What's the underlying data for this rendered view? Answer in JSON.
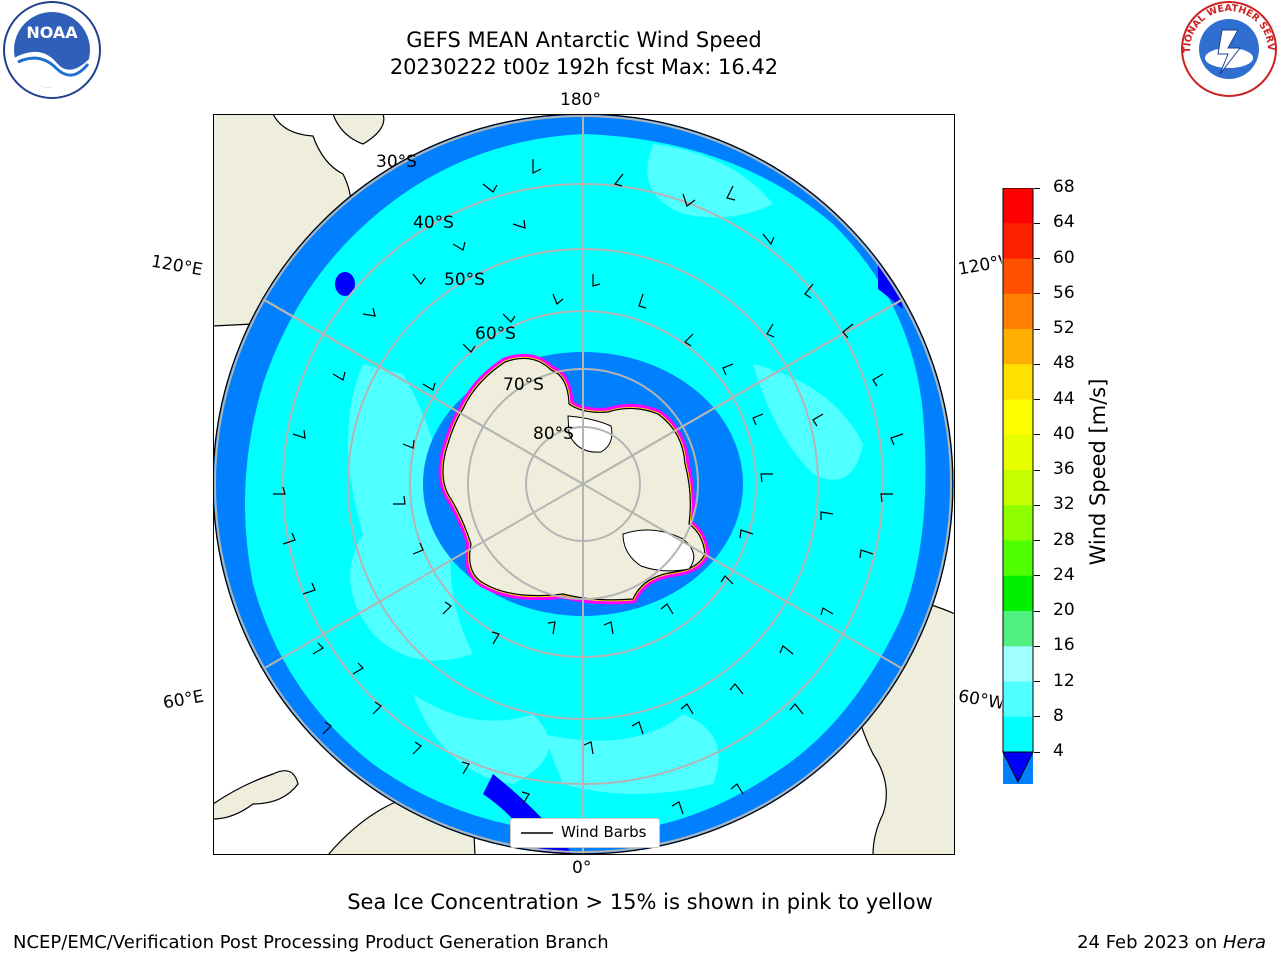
{
  "title_line1": "GEFS MEAN Antarctic Wind Speed",
  "title_line2": "20230222 t00z 192h fcst   Max: 16.42",
  "logos": {
    "noaa_text": "NOAA",
    "nws_text": "NATIONAL WEATHER SERVICE"
  },
  "longitude_labels": {
    "top": "180°",
    "bottom": "0°",
    "upper_left": "120°E",
    "upper_right": "120°W",
    "lower_left": "60°E",
    "lower_right": "60°W"
  },
  "latitude_labels": [
    "30°S",
    "40°S",
    "50°S",
    "60°S",
    "70°S",
    "80°S"
  ],
  "legend": {
    "label": "Wind Barbs"
  },
  "colorbar": {
    "label": "Wind Speed [m/s]",
    "ticks": [
      "68",
      "64",
      "60",
      "56",
      "52",
      "48",
      "44",
      "40",
      "36",
      "32",
      "28",
      "24",
      "20",
      "16",
      "12",
      "8",
      "4"
    ],
    "colors": [
      "#ff0000",
      "#ff2000",
      "#ff5000",
      "#ff8000",
      "#ffb000",
      "#ffe000",
      "#ffff00",
      "#e8ff00",
      "#c8ff00",
      "#90ff00",
      "#50ff00",
      "#00f000",
      "#50f080",
      "#a0ffff",
      "#50ffff",
      "#00ffff",
      "#0080ff"
    ],
    "under_color": "#0000ff"
  },
  "caption": "Sea Ice Concentration > 15% is shown in pink to yellow",
  "footer_left": "NCEP/EMC/Verification Post Processing Product Generation Branch",
  "footer_right_date": "24 Feb 2023 on ",
  "footer_right_machine": "Hera"
}
